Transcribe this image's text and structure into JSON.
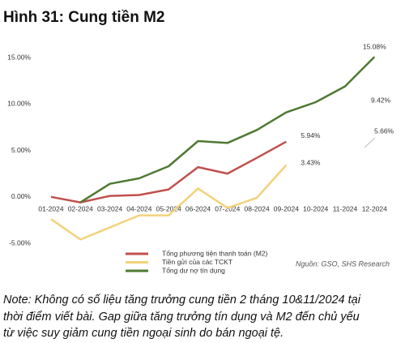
{
  "title": "Hình 31: Cung tiền M2",
  "chart_data": {
    "type": "line",
    "categories": [
      "01-2024",
      "02-2024",
      "03-2024",
      "04-2024",
      "05-2024",
      "06-2024",
      "07-2024",
      "08-2024",
      "09-2024",
      "10-2024",
      "11-2024",
      "12-2024"
    ],
    "series": [
      {
        "name": "Tổng phương tiện thanh toán (M2)",
        "color": "#c0504d",
        "values": [
          0.0,
          -0.6,
          0.1,
          0.2,
          0.8,
          3.2,
          2.5,
          4.2,
          5.94,
          null,
          null,
          null
        ],
        "value_labels": [
          null,
          null,
          null,
          null,
          null,
          null,
          null,
          null,
          "5.94%",
          null,
          null,
          null
        ]
      },
      {
        "name": "Tiền gửi của các TCKT",
        "color": "#f2d27a",
        "values": [
          -2.4,
          -4.6,
          -3.3,
          -2.0,
          -2.0,
          0.9,
          -1.2,
          -0.1,
          3.43,
          null,
          null,
          null
        ],
        "value_labels": [
          null,
          null,
          null,
          null,
          null,
          null,
          null,
          null,
          "3.43%",
          null,
          null,
          null
        ]
      },
      {
        "name": "Tổng dư nợ tín dụng",
        "color": "#4e7a32",
        "values": [
          null,
          -0.6,
          1.4,
          2.0,
          3.3,
          6.0,
          5.8,
          7.2,
          9.1,
          10.2,
          11.9,
          15.08
        ],
        "value_labels": [
          null,
          null,
          null,
          null,
          null,
          null,
          null,
          null,
          null,
          null,
          null,
          "15.08%"
        ]
      }
    ],
    "ylim": [
      -5,
      15
    ],
    "yticks": [
      {
        "value": -5,
        "label": "-5.00%"
      },
      {
        "value": 0,
        "label": "0.00%"
      },
      {
        "value": 5,
        "label": "5.00%"
      },
      {
        "value": 10,
        "label": "10.00%"
      },
      {
        "value": 15,
        "label": "15.00%"
      }
    ],
    "grid": false,
    "annotations": [
      "9.42%",
      "5.66%"
    ],
    "source": "Nguồn: GSO, SHS Research"
  },
  "note": [
    "Note: Không có số liệu tăng trưởng cung tiền 2 tháng 10&11/2024 tại",
    "thời điểm viết bài. Gap giữa tăng trưởng tín dụng và M2 đến chủ yếu",
    "từ việc suy giảm cung tiền ngoại sinh do bán ngoại tệ."
  ]
}
